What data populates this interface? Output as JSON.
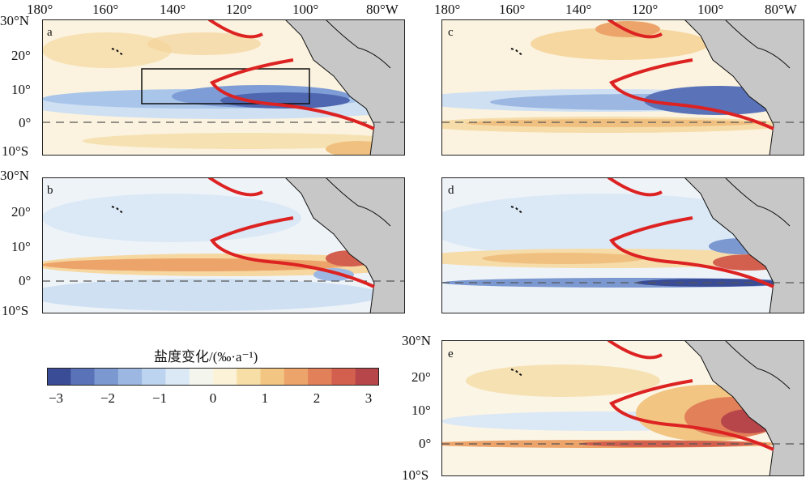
{
  "lon_labels": [
    "180°",
    "160°",
    "140°",
    "120°",
    "100°",
    "80°W"
  ],
  "lat_labels": [
    "30°N",
    "20°",
    "10°",
    "0°",
    "10°S"
  ],
  "panels": [
    {
      "letter": "a"
    },
    {
      "letter": "b"
    },
    {
      "letter": "c"
    },
    {
      "letter": "d"
    },
    {
      "letter": "e"
    }
  ],
  "colorbar": {
    "title": "盐度变化/(‰·a⁻¹)",
    "ticks": [
      "−3",
      "−2",
      "−1",
      "0",
      "1",
      "2",
      "3"
    ],
    "colors": [
      "#3a4c96",
      "#5a72b8",
      "#7b98d0",
      "#9cb8e2",
      "#bcd4ef",
      "#dbe8f6",
      "#f4f6ee",
      "#fbf2d8",
      "#f7dea6",
      "#f2c582",
      "#eca46a",
      "#e2805a",
      "#d3604f",
      "#b7464a"
    ]
  },
  "colors": {
    "contour": "#dd2222",
    "land": "#c7c7c7",
    "coast": "#111111"
  }
}
